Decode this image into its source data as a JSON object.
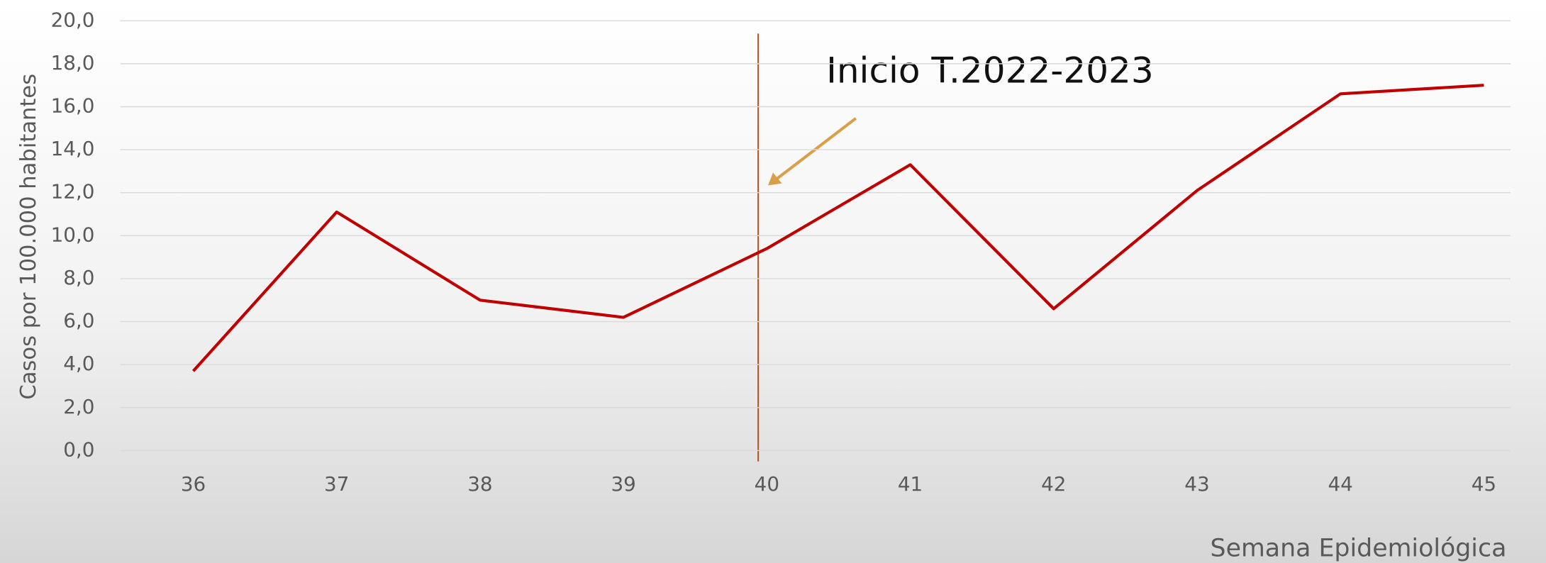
{
  "chart_data": {
    "type": "line",
    "y_label": "Casos por 100.000  habitantes",
    "x_label": "Semana Epidemiológica",
    "annotation": "Inicio T.2022-2023",
    "categories": [
      "36",
      "37",
      "38",
      "39",
      "40",
      "41",
      "42",
      "43",
      "44",
      "45"
    ],
    "values": [
      3.7,
      11.1,
      7.0,
      6.2,
      9.4,
      13.3,
      6.6,
      12.1,
      16.6,
      17.0
    ],
    "color": "#c00000",
    "ylim": [
      0,
      20
    ],
    "yticks": [
      {
        "value": 0,
        "label": "0,0"
      },
      {
        "value": 2,
        "label": "2,0"
      },
      {
        "value": 4,
        "label": "4,0"
      },
      {
        "value": 6,
        "label": "6,0"
      },
      {
        "value": 8,
        "label": "8,0"
      },
      {
        "value": 10,
        "label": "10,0"
      },
      {
        "value": 12,
        "label": "12,0"
      },
      {
        "value": 14,
        "label": "14,0"
      },
      {
        "value": 16,
        "label": "16,0"
      },
      {
        "value": 18,
        "label": "18,0"
      },
      {
        "value": 20,
        "label": "20,0"
      }
    ],
    "grid": true
  }
}
